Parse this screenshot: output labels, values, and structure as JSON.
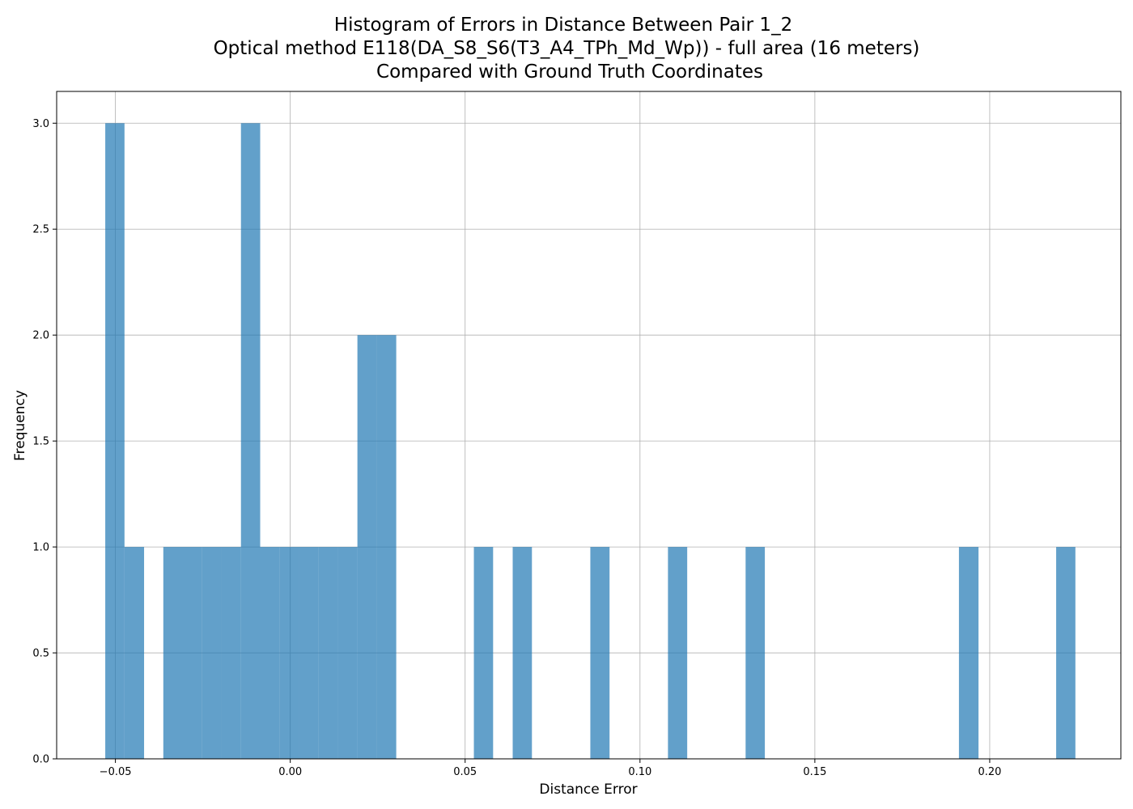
{
  "chart_data": {
    "type": "histogram",
    "title": [
      "Histogram of Errors in Distance Between Pair 1_2",
      "Optical method E118(DA_S8_S6(T3_A4_TPh_Md_Wp)) - full area (16 meters)",
      "Compared with Ground Truth Coordinates"
    ],
    "xlabel": "Distance Error",
    "ylabel": "Frequency",
    "xlim": [
      -0.0668,
      0.2375
    ],
    "ylim": [
      0,
      3.15
    ],
    "grid": true,
    "bar_color": "#1f77b4",
    "bar_alpha": 0.7,
    "x_ticks": [
      -0.05,
      0.0,
      0.05,
      0.1,
      0.15,
      0.2
    ],
    "x_tick_labels": [
      "−0.05",
      "0.00",
      "0.05",
      "0.10",
      "0.15",
      "0.20"
    ],
    "y_ticks": [
      0.0,
      0.5,
      1.0,
      1.5,
      2.0,
      2.5,
      3.0
    ],
    "y_tick_labels": [
      "0.0",
      "0.5",
      "1.0",
      "1.5",
      "2.0",
      "2.5",
      "3.0"
    ],
    "bins": [
      {
        "start": -0.0529,
        "end": -0.0474,
        "count": 3
      },
      {
        "start": -0.0474,
        "end": -0.0418,
        "count": 1
      },
      {
        "start": -0.0363,
        "end": -0.0307,
        "count": 1
      },
      {
        "start": -0.0307,
        "end": -0.0252,
        "count": 1
      },
      {
        "start": -0.0252,
        "end": -0.0196,
        "count": 1
      },
      {
        "start": -0.0196,
        "end": -0.0141,
        "count": 1
      },
      {
        "start": -0.0141,
        "end": -0.0086,
        "count": 3
      },
      {
        "start": -0.0086,
        "end": -0.003,
        "count": 1
      },
      {
        "start": -0.003,
        "end": 0.0025,
        "count": 1
      },
      {
        "start": 0.0025,
        "end": 0.0081,
        "count": 1
      },
      {
        "start": 0.0081,
        "end": 0.0136,
        "count": 1
      },
      {
        "start": 0.0136,
        "end": 0.0192,
        "count": 1
      },
      {
        "start": 0.0192,
        "end": 0.0247,
        "count": 2
      },
      {
        "start": 0.0247,
        "end": 0.0303,
        "count": 2
      },
      {
        "start": 0.0525,
        "end": 0.058,
        "count": 1
      },
      {
        "start": 0.0636,
        "end": 0.0691,
        "count": 1
      },
      {
        "start": 0.0858,
        "end": 0.0913,
        "count": 1
      },
      {
        "start": 0.108,
        "end": 0.1135,
        "count": 1
      },
      {
        "start": 0.1302,
        "end": 0.1357,
        "count": 1
      },
      {
        "start": 0.1912,
        "end": 0.1968,
        "count": 1
      },
      {
        "start": 0.219,
        "end": 0.2245,
        "count": 1
      }
    ]
  }
}
